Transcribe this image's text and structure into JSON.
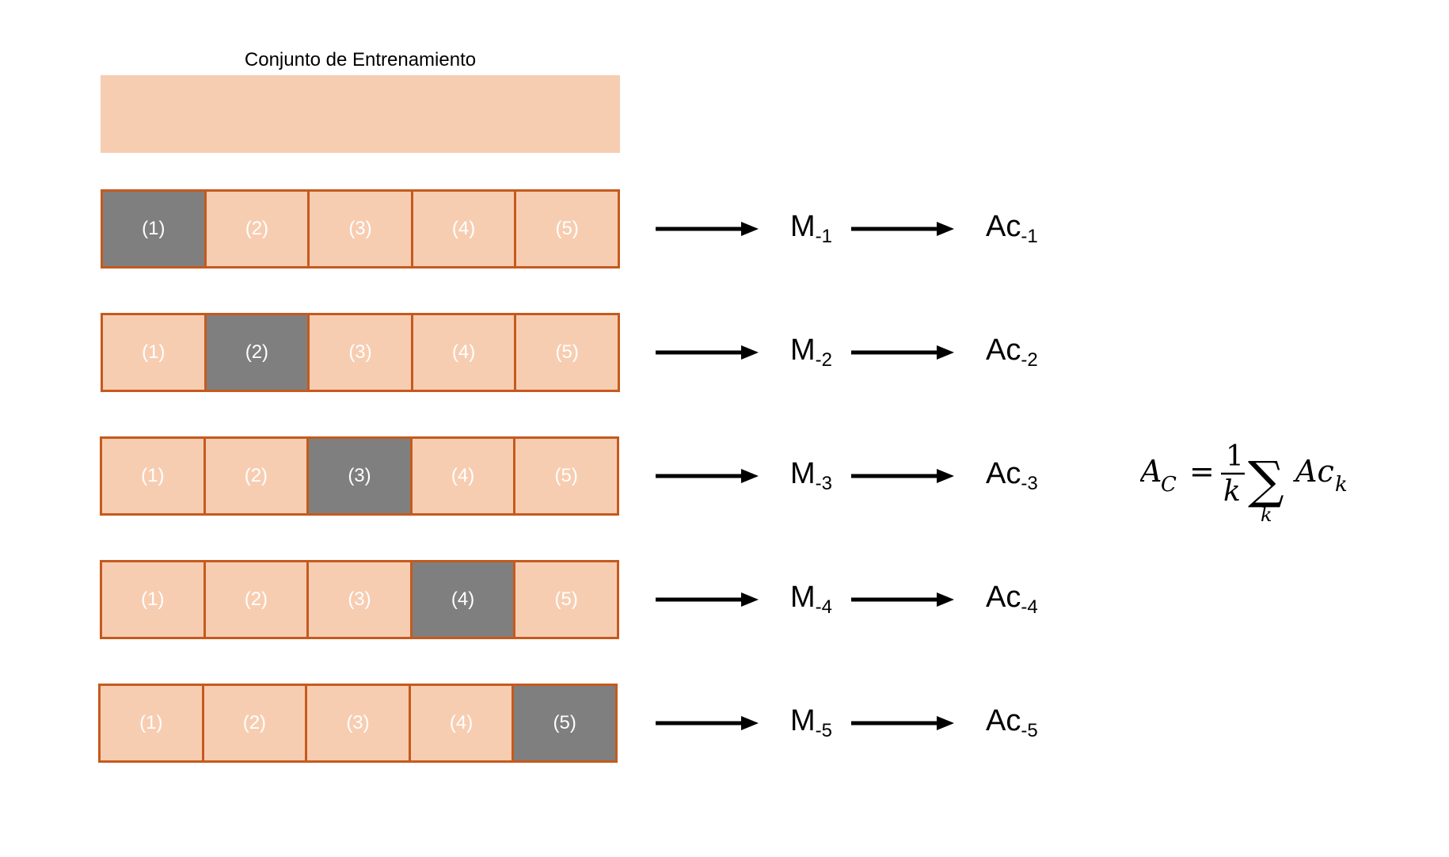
{
  "title": "Conjunto de Entrenamiento",
  "folds": [
    "(1)",
    "(2)",
    "(3)",
    "(4)",
    "(5)"
  ],
  "rows": [
    {
      "model": "M",
      "model_sub": "-1",
      "acc": "Ac",
      "acc_sub": "-1",
      "test_index": 0
    },
    {
      "model": "M",
      "model_sub": "-2",
      "acc": "Ac",
      "acc_sub": "-2",
      "test_index": 1
    },
    {
      "model": "M",
      "model_sub": "-3",
      "acc": "Ac",
      "acc_sub": "-3",
      "test_index": 2
    },
    {
      "model": "M",
      "model_sub": "-4",
      "acc": "Ac",
      "acc_sub": "-4",
      "test_index": 3
    },
    {
      "model": "M",
      "model_sub": "-5",
      "acc": "Ac",
      "acc_sub": "-5",
      "test_index": 4
    }
  ],
  "formula": {
    "lhs": "A",
    "lhs_sub": "C",
    "equals": "=",
    "numerator": "1",
    "denominator": "k",
    "sum_symbol": "∑",
    "sum_index": "k",
    "term": "Ac",
    "term_sub": "k"
  },
  "colors": {
    "train_fill": "#f7cdb1",
    "border": "#c55a1e",
    "test_fill": "#7f7f7f"
  }
}
